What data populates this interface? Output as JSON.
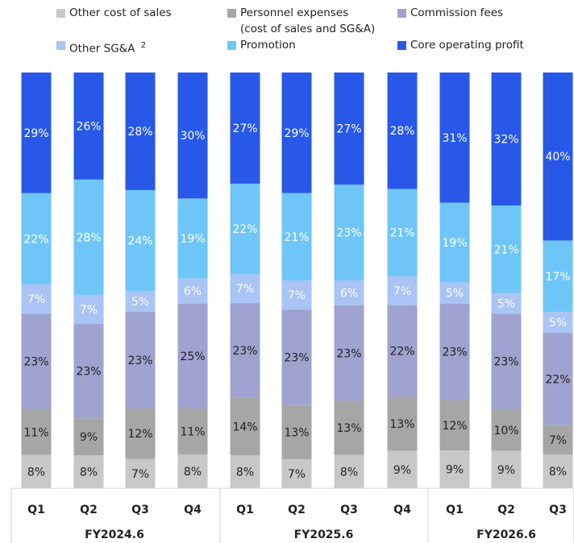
{
  "chart_data": {
    "type": "bar",
    "stacked": true,
    "normalized": true,
    "categories": [
      "Q1",
      "Q2",
      "Q3",
      "Q4",
      "Q1",
      "Q2",
      "Q3",
      "Q4",
      "Q1",
      "Q2",
      "Q3"
    ],
    "groups": [
      {
        "label": "FY2024.6",
        "count": 4
      },
      {
        "label": "FY2025.6",
        "count": 4
      },
      {
        "label": "FY2026.6",
        "count": 3
      }
    ],
    "series": [
      {
        "name": "Other cost of sales",
        "color": "#c8c8c8",
        "values": [
          8,
          8,
          7,
          8,
          8,
          7,
          8,
          9,
          9,
          9,
          8
        ]
      },
      {
        "name": "Personnel expenses (cost of sales and SG&A)",
        "color": "#a6a6a6",
        "values": [
          11,
          9,
          12,
          11,
          14,
          13,
          13,
          13,
          12,
          10,
          7
        ]
      },
      {
        "name": "Commission fees",
        "color": "#9ea3cf",
        "values": [
          23,
          23,
          23,
          25,
          23,
          23,
          23,
          22,
          23,
          23,
          22
        ]
      },
      {
        "name": "Other SG&A",
        "color": "#a9c4f5",
        "values": [
          7,
          7,
          5,
          6,
          7,
          7,
          6,
          7,
          5,
          5,
          5
        ]
      },
      {
        "name": "Promotion",
        "color": "#6ec6f8",
        "values": [
          22,
          28,
          24,
          19,
          22,
          21,
          23,
          21,
          19,
          21,
          17
        ]
      },
      {
        "name": "Core operating profit",
        "color": "#2758e8",
        "values": [
          29,
          26,
          28,
          30,
          27,
          29,
          27,
          28,
          31,
          32,
          40
        ]
      }
    ],
    "value_suffix": "%",
    "legend_placement": "top"
  },
  "legend": {
    "items": [
      {
        "label": "Other cost of sales",
        "color": "#c8c8c8"
      },
      {
        "label": "Personnel expenses",
        "sub": "(cost of sales and SG&A)",
        "color": "#a6a6a6"
      },
      {
        "label": "Commission fees",
        "color": "#9ea3cf"
      },
      {
        "label": "Other SG&A",
        "sup": "2",
        "color": "#a9c4f5"
      },
      {
        "label": "Promotion",
        "color": "#6ec6f8"
      },
      {
        "label": "Core operating profit",
        "color": "#2758e8"
      }
    ]
  }
}
